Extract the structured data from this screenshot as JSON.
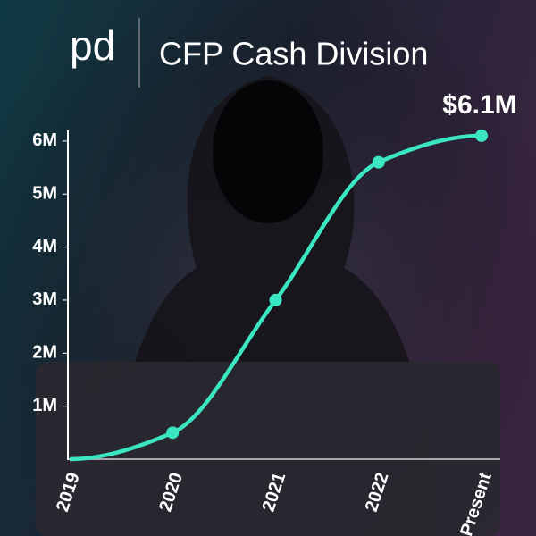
{
  "chart_data": {
    "type": "line",
    "logo": "pd",
    "title": "CFP Cash Division",
    "categories": [
      "2019",
      "2020",
      "2021",
      "2022",
      "Present"
    ],
    "series": [
      {
        "color": "#3be6c2",
        "values": [
          0,
          500000,
          3000000,
          5600000,
          6100000
        ],
        "value_labels": [
          null,
          null,
          null,
          null,
          "$6.1M"
        ]
      }
    ],
    "ylim": [
      0,
      6200000
    ],
    "yticks": [
      {
        "value": 1000000,
        "label": "1M"
      },
      {
        "value": 2000000,
        "label": "2M"
      },
      {
        "value": 3000000,
        "label": "3M"
      },
      {
        "value": 4000000,
        "label": "4M"
      },
      {
        "value": 5000000,
        "label": "5M"
      },
      {
        "value": 6000000,
        "label": "6M"
      }
    ]
  }
}
